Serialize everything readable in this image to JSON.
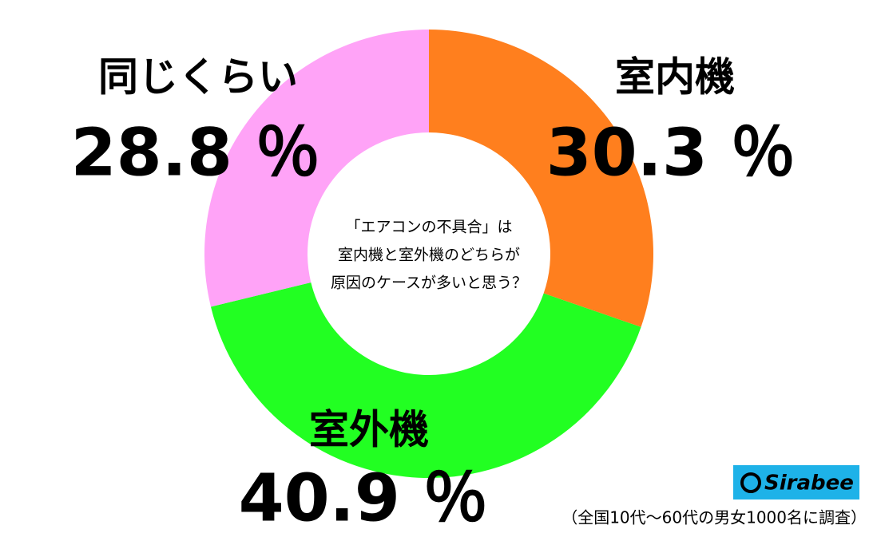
{
  "chart_data": {
    "type": "donut",
    "categories": [
      "室内機",
      "室外機",
      "同じくらい"
    ],
    "values": [
      30.3,
      40.9,
      28.8
    ],
    "value_labels": [
      "30.3 ％",
      "40.9 ％",
      "28.8 ％"
    ],
    "colors": [
      "#ff7f1e",
      "#22ff22",
      "#ffa3f7"
    ],
    "center_text": [
      "「エアコンの不具合」は",
      "室内機と室外機のどちらが",
      "原因のケースが多いと思う？"
    ],
    "source": "（全国10代～60代の男女1000名に調査）",
    "logo": "Sirabee"
  }
}
